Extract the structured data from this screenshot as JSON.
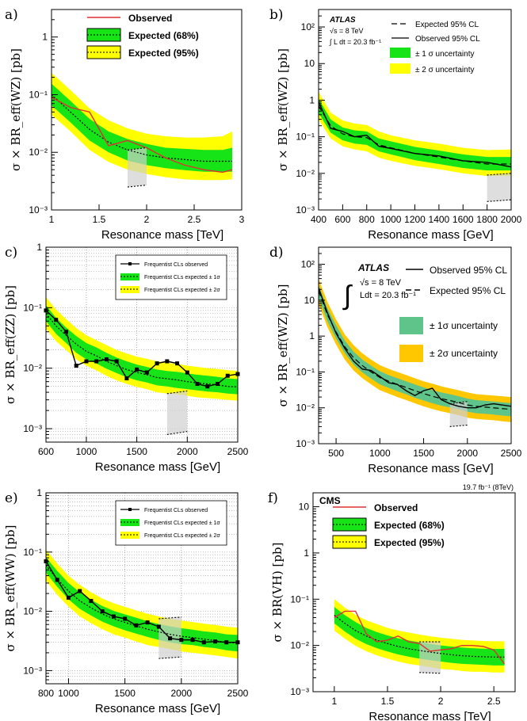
{
  "colors": {
    "band68": "#17e417",
    "band95": "#ffff00",
    "obs": "#e03030",
    "line": "#000000",
    "band68_d": "#5ec48a",
    "band95_d": "#ffc700",
    "shade": "#d0d0d0"
  },
  "chart_data": [
    {
      "id": "a",
      "type": "line",
      "panel_label": "a)",
      "xlabel": "Resonance mass [TeV]",
      "ylabel": "σ × BR_eff(WZ) [pb]",
      "xlim": [
        1,
        3
      ],
      "ylim": [
        0.001,
        3
      ],
      "ylog": true,
      "xticks": [
        1,
        1.5,
        2,
        2.5,
        3
      ],
      "xtick_labels": [
        "1",
        "1.5",
        "2",
        "2.5",
        "3"
      ],
      "yticks": [
        0.001,
        0.01,
        0.1,
        1
      ],
      "ytick_labels": [
        "10⁻³",
        "10⁻²",
        "10⁻¹",
        "1"
      ],
      "legend": [
        "Observed",
        "Expected (68%)",
        "Expected (95%)"
      ],
      "legend_style": "cms",
      "x": [
        1.0,
        1.2,
        1.4,
        1.6,
        1.8,
        2.0,
        2.2,
        2.4,
        2.6,
        2.8,
        2.9
      ],
      "observed": [
        0.09,
        0.06,
        0.05,
        0.013,
        0.016,
        0.012,
        0.008,
        0.006,
        0.005,
        0.0045,
        0.005
      ],
      "expected": [
        0.1,
        0.05,
        0.025,
        0.015,
        0.011,
        0.009,
        0.008,
        0.0075,
        0.007,
        0.007,
        0.007
      ],
      "band68": {
        "lo": [
          0.065,
          0.033,
          0.016,
          0.01,
          0.0072,
          0.006,
          0.0053,
          0.0049,
          0.0046,
          0.0046,
          0.0046
        ],
        "hi": [
          0.155,
          0.078,
          0.038,
          0.023,
          0.017,
          0.014,
          0.012,
          0.0115,
          0.011,
          0.011,
          0.012
        ]
      },
      "band95": {
        "lo": [
          0.045,
          0.023,
          0.011,
          0.0068,
          0.005,
          0.0042,
          0.0037,
          0.0034,
          0.0033,
          0.0033,
          0.0034
        ],
        "hi": [
          0.24,
          0.12,
          0.058,
          0.036,
          0.026,
          0.021,
          0.019,
          0.018,
          0.018,
          0.019,
          0.023
        ]
      },
      "box": {
        "x": [
          1.8,
          2.0
        ],
        "lo": [
          0.0025,
          0.0027
        ],
        "hi": [
          0.011,
          0.012
        ]
      }
    },
    {
      "id": "b",
      "type": "line",
      "panel_label": "b)",
      "xlabel": "Resonance mass [GeV]",
      "ylabel": "σ × BR_eff(WZ) [pb]",
      "xlim": [
        400,
        2000
      ],
      "ylim": [
        0.001,
        300
      ],
      "ylog": true,
      "xticks": [
        400,
        600,
        800,
        1000,
        1200,
        1400,
        1600,
        1800,
        2000
      ],
      "xtick_labels": [
        "400",
        "600",
        "800",
        "1000",
        "1200",
        "1400",
        "1600",
        "1800",
        "2000"
      ],
      "yticks": [
        0.001,
        0.01,
        0.1,
        1,
        10,
        100
      ],
      "ytick_labels": [
        "10⁻³",
        "10⁻²",
        "10⁻¹",
        "1",
        "10",
        "10²"
      ],
      "legend": [
        "Expected 95% CL",
        "Observed 95% CL",
        "± 1 σ uncertainty",
        "± 2 σ uncertainty"
      ],
      "legend_style": "atlas",
      "atlas": [
        "ATLAS",
        "√s = 8 TeV",
        "∫ L dt = 20.3 fb⁻¹"
      ],
      "x": [
        400,
        500,
        600,
        700,
        800,
        900,
        1000,
        1200,
        1400,
        1600,
        1800,
        2000
      ],
      "observed": [
        0.9,
        0.17,
        0.14,
        0.1,
        0.11,
        0.055,
        0.048,
        0.035,
        0.03,
        0.022,
        0.02,
        0.015
      ],
      "expected": [
        0.7,
        0.2,
        0.12,
        0.1,
        0.095,
        0.06,
        0.05,
        0.035,
        0.028,
        0.022,
        0.018,
        0.018
      ],
      "band68": {
        "lo": [
          0.45,
          0.13,
          0.08,
          0.065,
          0.06,
          0.04,
          0.033,
          0.023,
          0.018,
          0.014,
          0.012,
          0.012
        ],
        "hi": [
          1.1,
          0.3,
          0.18,
          0.15,
          0.14,
          0.09,
          0.075,
          0.053,
          0.042,
          0.033,
          0.028,
          0.028
        ]
      },
      "band95": {
        "lo": [
          0.3,
          0.09,
          0.055,
          0.045,
          0.04,
          0.027,
          0.022,
          0.016,
          0.013,
          0.01,
          0.0085,
          0.0085
        ],
        "hi": [
          1.7,
          0.46,
          0.28,
          0.23,
          0.21,
          0.14,
          0.11,
          0.08,
          0.065,
          0.05,
          0.043,
          0.045
        ]
      },
      "box": {
        "x": [
          1800,
          2000
        ],
        "lo": [
          0.0017,
          0.0019
        ],
        "hi": [
          0.009,
          0.01
        ]
      }
    },
    {
      "id": "c",
      "type": "line",
      "panel_label": "c)",
      "xlabel": "Resonance mass [GeV]",
      "ylabel": "σ × BR_eff(ZZ) [pb]",
      "xlim": [
        600,
        2500
      ],
      "ylim": [
        0.0006,
        1
      ],
      "ylog": true,
      "xticks": [
        600,
        1000,
        1500,
        2000,
        2500
      ],
      "xtick_labels": [
        "600",
        "1000",
        "1500",
        "2000",
        "2500"
      ],
      "yticks": [
        0.001,
        0.01,
        0.1,
        1
      ],
      "ytick_labels": [
        "10⁻³",
        "10⁻²",
        "10⁻¹",
        "1"
      ],
      "legend": [
        "Frequentist CLs observed",
        "Frequentist CLs expected ± 1σ",
        "Frequentist CLs expected ± 2σ"
      ],
      "legend_style": "freq",
      "x": [
        600,
        700,
        800,
        900,
        1000,
        1100,
        1200,
        1300,
        1400,
        1500,
        1600,
        1700,
        1800,
        1900,
        2000,
        2100,
        2200,
        2300,
        2400,
        2500
      ],
      "observed": [
        0.09,
        0.063,
        0.04,
        0.011,
        0.013,
        0.013,
        0.014,
        0.013,
        0.0068,
        0.0095,
        0.0085,
        0.012,
        0.013,
        0.012,
        0.0085,
        0.0055,
        0.005,
        0.0055,
        0.0075,
        0.008
      ],
      "expected": [
        0.08,
        0.05,
        0.035,
        0.025,
        0.019,
        0.016,
        0.013,
        0.011,
        0.0095,
        0.0085,
        0.0078,
        0.007,
        0.0067,
        0.0064,
        0.006,
        0.0057,
        0.0055,
        0.0053,
        0.005,
        0.0049
      ],
      "band68": {
        "lo": [
          0.06,
          0.037,
          0.026,
          0.018,
          0.014,
          0.012,
          0.0098,
          0.0083,
          0.0071,
          0.0063,
          0.0058,
          0.0052,
          0.005,
          0.0047,
          0.0045,
          0.0043,
          0.0041,
          0.004,
          0.0038,
          0.0037
        ],
        "hi": [
          0.11,
          0.068,
          0.047,
          0.034,
          0.026,
          0.022,
          0.018,
          0.015,
          0.013,
          0.0115,
          0.0105,
          0.0095,
          0.009,
          0.0087,
          0.0082,
          0.0078,
          0.0075,
          0.0072,
          0.0068,
          0.0066
        ]
      },
      "band95": {
        "lo": [
          0.045,
          0.028,
          0.02,
          0.014,
          0.011,
          0.0092,
          0.0075,
          0.0063,
          0.0055,
          0.0049,
          0.0045,
          0.004,
          0.0038,
          0.0037,
          0.0035,
          0.0033,
          0.0032,
          0.0031,
          0.003,
          0.0029
        ],
        "hi": [
          0.15,
          0.093,
          0.065,
          0.046,
          0.035,
          0.029,
          0.024,
          0.02,
          0.0175,
          0.0155,
          0.0143,
          0.013,
          0.0123,
          0.0118,
          0.011,
          0.0105,
          0.01,
          0.0097,
          0.0093,
          0.009
        ]
      },
      "box": {
        "x": [
          1800,
          2000
        ],
        "lo": [
          0.0008,
          0.0009
        ],
        "hi": [
          0.0038,
          0.0042
        ]
      },
      "grid": true,
      "markers": true
    },
    {
      "id": "d",
      "type": "line",
      "panel_label": "d)",
      "xlabel": "Resonance mass [GeV]",
      "ylabel": "σ × BR_eff(WZ) [pb]",
      "xlim": [
        300,
        2500
      ],
      "ylim": [
        0.001,
        300
      ],
      "ylog": true,
      "xticks": [
        500,
        1000,
        1500,
        2000,
        2500
      ],
      "xtick_labels": [
        "500",
        "1000",
        "1500",
        "2000",
        "2500"
      ],
      "yticks": [
        0.001,
        0.01,
        0.1,
        1,
        10,
        100
      ],
      "ytick_labels": [
        "10⁻³",
        "10⁻²",
        "10⁻¹",
        "1",
        "10",
        "10²"
      ],
      "legend": [
        "Observed 95% CL",
        "Expected 95% CL",
        "± 1σ uncertainty",
        "± 2σ uncertainty"
      ],
      "legend_style": "atlas2",
      "atlas": [
        "ATLAS",
        "√s = 8 TeV",
        "Ldt = 20.3 fb⁻¹"
      ],
      "x": [
        300,
        400,
        500,
        600,
        700,
        800,
        900,
        1000,
        1100,
        1200,
        1300,
        1400,
        1500,
        1600,
        1700,
        1800,
        1900,
        2000,
        2100,
        2200,
        2300,
        2400,
        2500
      ],
      "observed": [
        22,
        4.5,
        1.2,
        0.45,
        0.2,
        0.12,
        0.11,
        0.075,
        0.05,
        0.045,
        0.03,
        0.022,
        0.03,
        0.035,
        0.017,
        0.013,
        0.011,
        0.01,
        0.01,
        0.012,
        0.013,
        0.012,
        0.011
      ],
      "expected": [
        18,
        4,
        1.3,
        0.5,
        0.25,
        0.15,
        0.1,
        0.07,
        0.055,
        0.045,
        0.037,
        0.03,
        0.025,
        0.021,
        0.018,
        0.016,
        0.014,
        0.012,
        0.011,
        0.0105,
        0.01,
        0.0095,
        0.009
      ],
      "band68": {
        "lo": [
          12,
          2.6,
          0.85,
          0.33,
          0.16,
          0.097,
          0.065,
          0.045,
          0.036,
          0.029,
          0.024,
          0.019,
          0.016,
          0.0135,
          0.0115,
          0.0103,
          0.009,
          0.0078,
          0.0071,
          0.0068,
          0.0065,
          0.0061,
          0.0058
        ],
        "hi": [
          27,
          6,
          2,
          0.75,
          0.37,
          0.22,
          0.15,
          0.105,
          0.082,
          0.067,
          0.055,
          0.045,
          0.037,
          0.031,
          0.027,
          0.024,
          0.021,
          0.018,
          0.0165,
          0.0157,
          0.015,
          0.0142,
          0.0135
        ]
      },
      "band95": {
        "lo": [
          8,
          1.8,
          0.58,
          0.22,
          0.11,
          0.067,
          0.045,
          0.031,
          0.025,
          0.02,
          0.0165,
          0.0134,
          0.011,
          0.0093,
          0.008,
          0.0071,
          0.0062,
          0.0053,
          0.0049,
          0.0047,
          0.0045,
          0.0042,
          0.004
        ],
        "hi": [
          40,
          9,
          2.9,
          1.1,
          0.56,
          0.33,
          0.22,
          0.155,
          0.122,
          0.1,
          0.082,
          0.067,
          0.055,
          0.047,
          0.04,
          0.035,
          0.031,
          0.027,
          0.024,
          0.023,
          0.022,
          0.021,
          0.02
        ]
      },
      "box": {
        "x": [
          1800,
          2000
        ],
        "lo": [
          0.003,
          0.0033
        ],
        "hi": [
          0.013,
          0.015
        ]
      },
      "dark_bands": true
    },
    {
      "id": "e",
      "type": "line",
      "panel_label": "e)",
      "xlabel": "Resonance mass [GeV]",
      "ylabel": "σ × BR_eff(WW) [pb]",
      "xlim": [
        800,
        2500
      ],
      "ylim": [
        0.0006,
        1
      ],
      "ylog": true,
      "xticks": [
        800,
        1000,
        1500,
        2000,
        2500
      ],
      "xtick_labels": [
        "800",
        "1000",
        "1500",
        "2000",
        "2500"
      ],
      "yticks": [
        0.001,
        0.01,
        0.1,
        1
      ],
      "ytick_labels": [
        "10⁻³",
        "10⁻²",
        "10⁻¹",
        "1"
      ],
      "legend": [
        "Frequentist CLs observed",
        "Frequentist CLs expected ± 1σ",
        "Frequentist CLs expected ± 2σ"
      ],
      "legend_style": "freq",
      "x": [
        800,
        900,
        1000,
        1100,
        1200,
        1300,
        1400,
        1500,
        1600,
        1700,
        1800,
        1900,
        2000,
        2100,
        2200,
        2300,
        2400,
        2500
      ],
      "observed": [
        0.07,
        0.034,
        0.017,
        0.022,
        0.015,
        0.01,
        0.0082,
        0.0075,
        0.0058,
        0.0065,
        0.0055,
        0.0035,
        0.0033,
        0.0033,
        0.003,
        0.0031,
        0.003,
        0.003
      ],
      "expected": [
        0.06,
        0.035,
        0.022,
        0.015,
        0.0115,
        0.009,
        0.0075,
        0.0065,
        0.0057,
        0.005,
        0.0045,
        0.0041,
        0.0038,
        0.0036,
        0.0034,
        0.0032,
        0.003,
        0.0029
      ],
      "band68": {
        "lo": [
          0.045,
          0.026,
          0.016,
          0.011,
          0.0085,
          0.0067,
          0.0056,
          0.0048,
          0.0042,
          0.0037,
          0.0033,
          0.003,
          0.0028,
          0.0027,
          0.0025,
          0.0024,
          0.0022,
          0.0021
        ],
        "hi": [
          0.082,
          0.048,
          0.03,
          0.021,
          0.0157,
          0.0123,
          0.0102,
          0.0089,
          0.0078,
          0.0068,
          0.0061,
          0.0056,
          0.0052,
          0.0049,
          0.0046,
          0.0044,
          0.0041,
          0.004
        ]
      },
      "band95": {
        "lo": [
          0.033,
          0.019,
          0.012,
          0.0082,
          0.0063,
          0.005,
          0.0041,
          0.0036,
          0.0031,
          0.0027,
          0.0025,
          0.0023,
          0.0021,
          0.002,
          0.0019,
          0.0018,
          0.0017,
          0.0016
        ],
        "hi": [
          0.11,
          0.064,
          0.04,
          0.028,
          0.021,
          0.0165,
          0.0137,
          0.0119,
          0.0104,
          0.0091,
          0.0082,
          0.0075,
          0.007,
          0.0066,
          0.0062,
          0.0059,
          0.0055,
          0.0053
        ]
      },
      "box": {
        "x": [
          1800,
          2000
        ],
        "lo": [
          0.0016,
          0.0017
        ],
        "hi": [
          0.0075,
          0.008
        ]
      },
      "grid": true,
      "markers": true
    },
    {
      "id": "f",
      "type": "line",
      "panel_label": "f)",
      "xlabel": "Resonance mass [TeV]",
      "ylabel": "σ × BR(VH) [pb]",
      "xlim": [
        0.8,
        2.7
      ],
      "ylim": [
        0.001,
        20
      ],
      "ylog": true,
      "xticks": [
        1,
        1.5,
        2,
        2.5
      ],
      "xtick_labels": [
        "1",
        "1.5",
        "2",
        "2.5"
      ],
      "yticks": [
        0.001,
        0.01,
        0.1,
        1,
        10
      ],
      "ytick_labels": [
        "10⁻³",
        "10⁻²",
        "10⁻¹",
        "1",
        "10"
      ],
      "legend": [
        "Observed",
        "Expected (68%)",
        "Expected (95%)"
      ],
      "legend_style": "cms",
      "cms": "CMS",
      "lumi": "19.7 fb⁻¹ (8TeV)",
      "x": [
        1.0,
        1.1,
        1.2,
        1.3,
        1.4,
        1.5,
        1.6,
        1.7,
        1.8,
        1.9,
        2.0,
        2.1,
        2.2,
        2.3,
        2.4,
        2.5,
        2.6
      ],
      "observed": [
        0.04,
        0.055,
        0.055,
        0.018,
        0.012,
        0.013,
        0.016,
        0.012,
        0.011,
        0.0075,
        0.008,
        0.0085,
        0.01,
        0.01,
        0.0095,
        0.008,
        0.004
      ],
      "expected": [
        0.045,
        0.03,
        0.021,
        0.016,
        0.013,
        0.011,
        0.0095,
        0.0085,
        0.0078,
        0.0072,
        0.0067,
        0.0063,
        0.006,
        0.0058,
        0.0057,
        0.0056,
        0.0056
      ],
      "band68": {
        "lo": [
          0.03,
          0.02,
          0.014,
          0.0107,
          0.0087,
          0.0074,
          0.0064,
          0.0057,
          0.0052,
          0.0048,
          0.0045,
          0.0042,
          0.004,
          0.0039,
          0.0038,
          0.0037,
          0.0037
        ],
        "hi": [
          0.068,
          0.045,
          0.032,
          0.024,
          0.0195,
          0.0165,
          0.0143,
          0.0128,
          0.0117,
          0.0108,
          0.01,
          0.0095,
          0.009,
          0.0087,
          0.0085,
          0.0084,
          0.0084
        ]
      },
      "band95": {
        "lo": [
          0.021,
          0.014,
          0.0098,
          0.0075,
          0.0061,
          0.0052,
          0.0045,
          0.004,
          0.0037,
          0.0034,
          0.0031,
          0.003,
          0.0028,
          0.0027,
          0.0027,
          0.0026,
          0.0026
        ],
        "hi": [
          0.1,
          0.066,
          0.046,
          0.035,
          0.029,
          0.024,
          0.021,
          0.019,
          0.0172,
          0.0158,
          0.0147,
          0.0139,
          0.0132,
          0.0128,
          0.0125,
          0.0123,
          0.0123
        ]
      },
      "box": {
        "x": [
          1.8,
          2.0
        ],
        "lo": [
          0.0026,
          0.0025
        ],
        "hi": [
          0.012,
          0.012
        ]
      }
    }
  ]
}
